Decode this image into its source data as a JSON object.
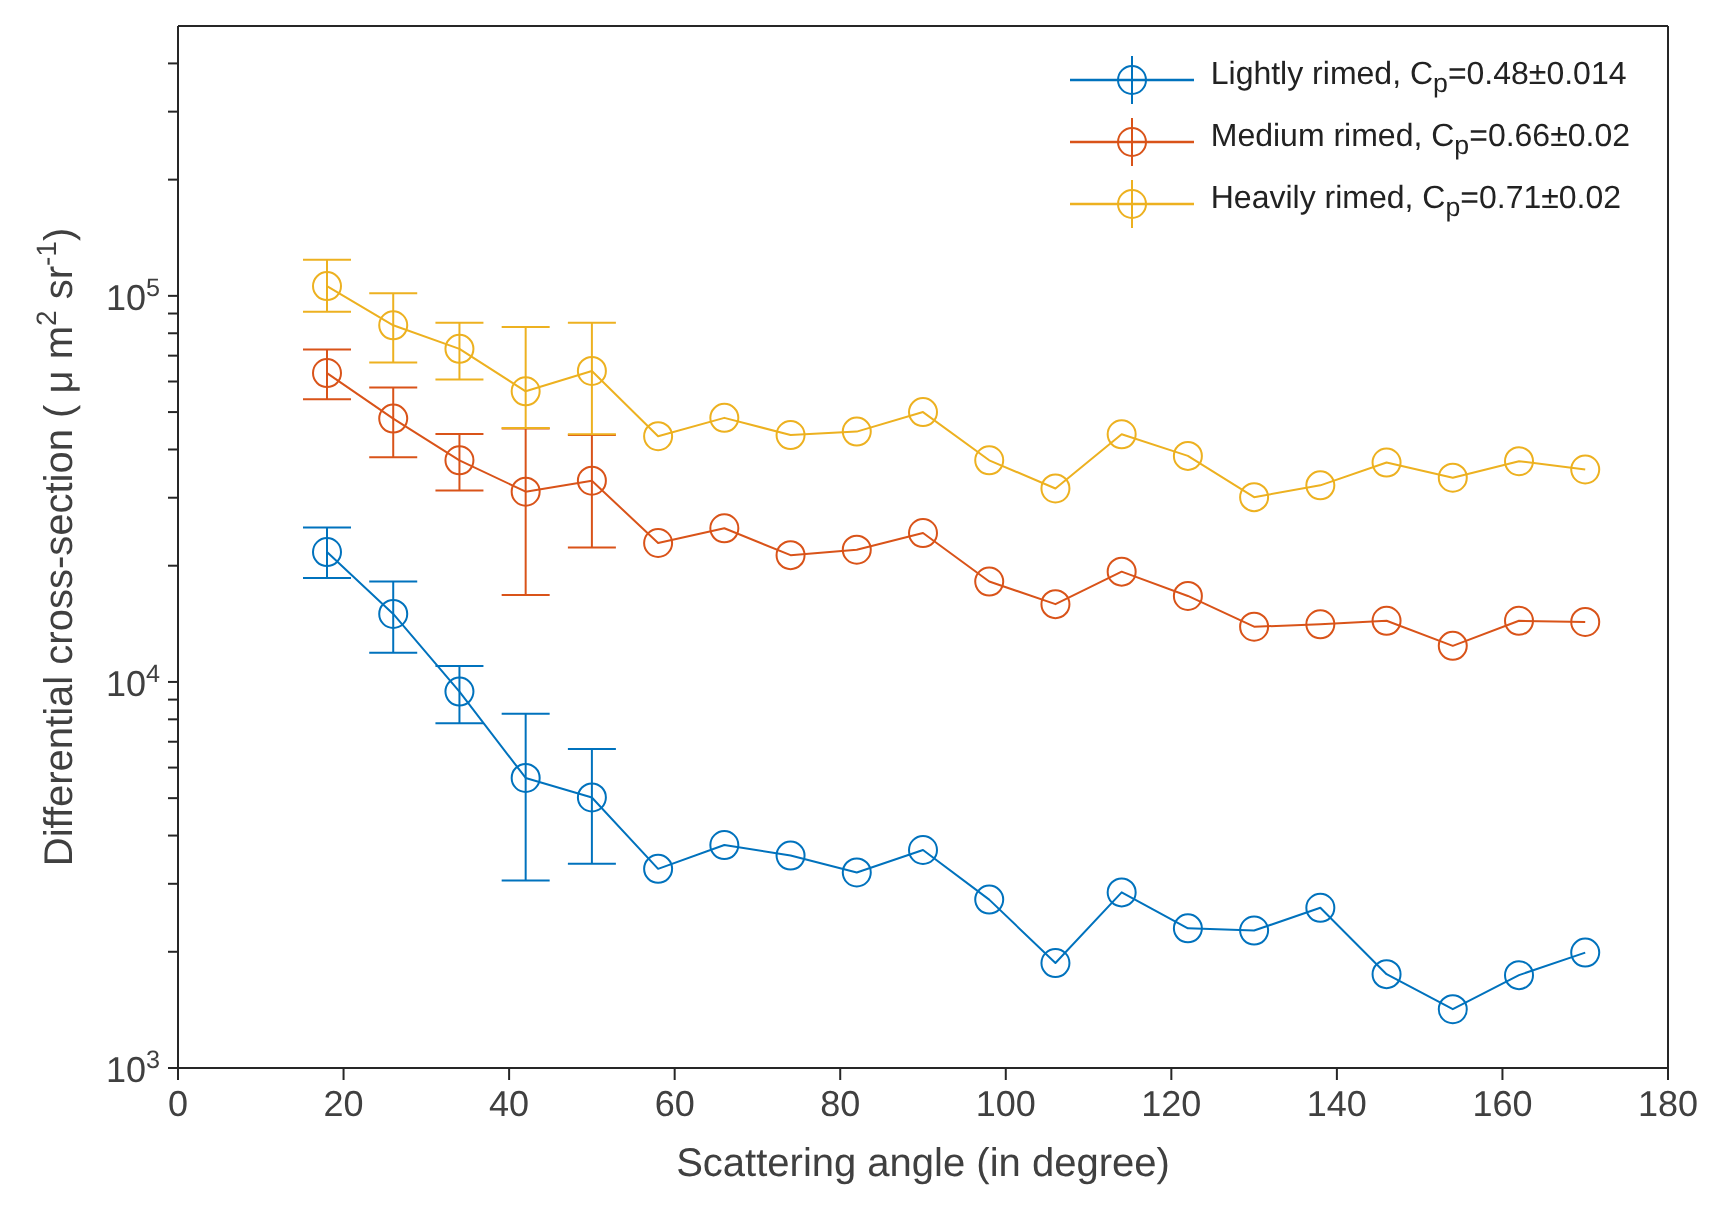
{
  "chart_data": {
    "type": "line",
    "xlabel": "Scattering angle (in degree)",
    "ylabel": "Differential cross-section ( μ m$^{2}$ sr$^{-1}$)",
    "x": [
      18,
      26,
      34,
      42,
      50,
      58,
      66,
      74,
      82,
      90,
      98,
      106,
      114,
      122,
      130,
      138,
      146,
      154,
      162,
      170
    ],
    "series": [
      {
        "name": "Lightly rimed, C$_{p}$=0.48±0.014",
        "color": "#0072bd",
        "values": [
          21700,
          15000,
          9440,
          5640,
          5020,
          3280,
          3780,
          3550,
          3210,
          3670,
          2730,
          1870,
          2850,
          2300,
          2270,
          2600,
          1750,
          1420,
          1740,
          1990
        ],
        "errors": [
          [
            18600,
            25100
          ],
          [
            11900,
            18200
          ],
          [
            7820,
            11000
          ],
          [
            3060,
            8270
          ],
          [
            3380,
            6700
          ],
          null,
          null,
          null,
          null,
          null,
          null,
          null,
          null,
          null,
          null,
          null,
          null,
          null,
          null,
          null
        ]
      },
      {
        "name": "Medium rimed, C$_{p}$=0.66±0.02",
        "color": "#d95319",
        "values": [
          63100,
          48100,
          37500,
          31100,
          33200,
          22900,
          25000,
          21300,
          22000,
          24300,
          18200,
          15900,
          19300,
          16700,
          13900,
          14100,
          14400,
          12400,
          14400,
          14300
        ],
        "errors": [
          [
            54000,
            72600
          ],
          [
            38200,
            57900
          ],
          [
            31300,
            43900
          ],
          [
            16800,
            45300
          ],
          [
            22300,
            43600
          ],
          null,
          null,
          null,
          null,
          null,
          null,
          null,
          null,
          null,
          null,
          null,
          null,
          null,
          null,
          null
        ]
      },
      {
        "name": "Heavily rimed, C$_{p}$=0.71±0.02",
        "color": "#edb120",
        "values": [
          106000,
          83900,
          72900,
          56600,
          63900,
          43300,
          48300,
          43600,
          44500,
          50000,
          37500,
          31700,
          43800,
          38500,
          30100,
          32300,
          37000,
          33800,
          37300,
          35500
        ],
        "errors": [
          [
            91000,
            124000
          ],
          [
            67200,
            101600
          ],
          [
            60700,
            85200
          ],
          [
            45500,
            83000
          ],
          [
            43800,
            85200
          ],
          null,
          null,
          null,
          null,
          null,
          null,
          null,
          null,
          null,
          null,
          null,
          null,
          null,
          null,
          null
        ]
      }
    ],
    "xlim": [
      0,
      180
    ],
    "xticks": [
      0,
      20,
      40,
      60,
      80,
      100,
      120,
      140,
      160,
      180
    ],
    "ylim": [
      1000,
      500000
    ],
    "log": "y",
    "yticks": [
      {
        "value": 1000,
        "label": "10$^{3}$"
      },
      {
        "value": 2000,
        "label": null
      },
      {
        "value": 3000,
        "label": null
      },
      {
        "value": 4000,
        "label": null
      },
      {
        "value": 5000,
        "label": null
      },
      {
        "value": 6000,
        "label": null
      },
      {
        "value": 7000,
        "label": null
      },
      {
        "value": 8000,
        "label": null
      },
      {
        "value": 9000,
        "label": null
      },
      {
        "value": 10000,
        "label": "10$^{4}$"
      },
      {
        "value": 20000,
        "label": null
      },
      {
        "value": 30000,
        "label": null
      },
      {
        "value": 40000,
        "label": null
      },
      {
        "value": 50000,
        "label": null
      },
      {
        "value": 60000,
        "label": null
      },
      {
        "value": 70000,
        "label": null
      },
      {
        "value": 80000,
        "label": null
      },
      {
        "value": 90000,
        "label": null
      },
      {
        "value": 100000,
        "label": "10$^{5}$"
      },
      {
        "value": 200000,
        "label": null
      },
      {
        "value": 300000,
        "label": null
      },
      {
        "value": 400000,
        "label": null
      }
    ],
    "grid": false,
    "legend": "top right",
    "marker": "circle",
    "line_style": "solid"
  }
}
